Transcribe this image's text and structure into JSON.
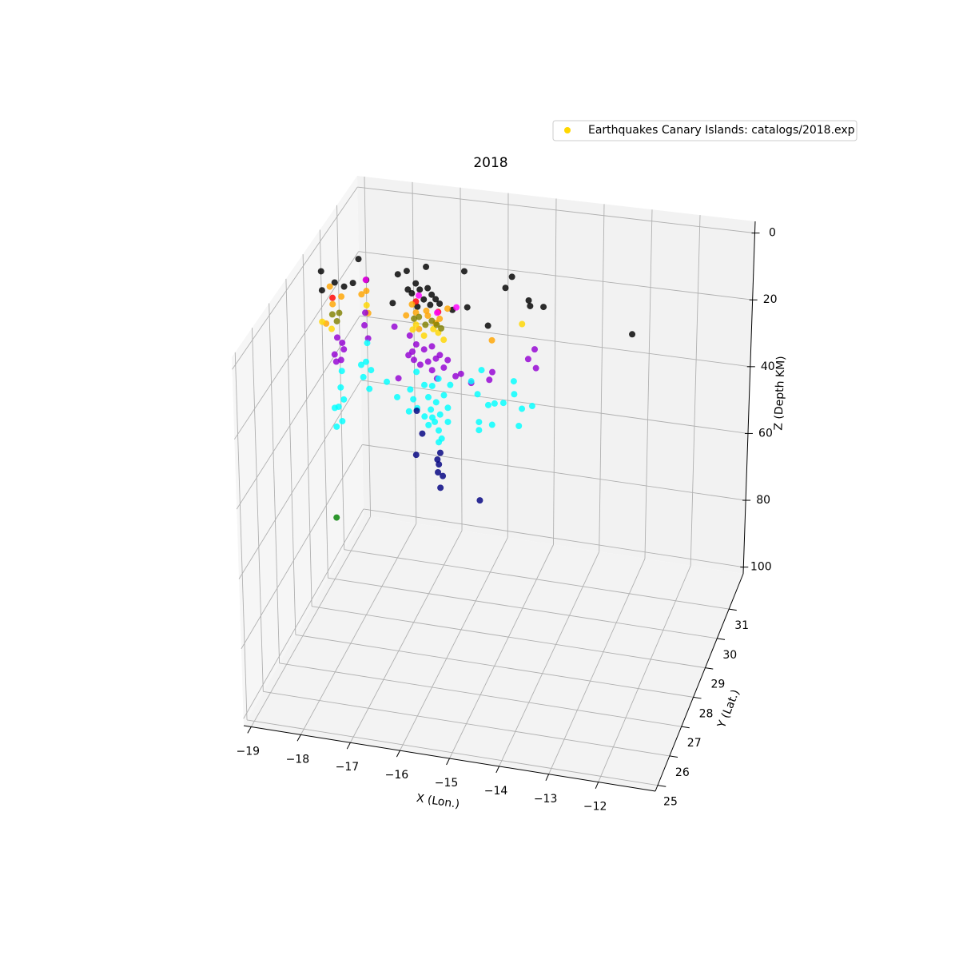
{
  "chart_data": {
    "type": "scatter3d",
    "title": "2018",
    "xlabel": "X (Lon.)",
    "ylabel": "Y (Lat.)",
    "zlabel": "Z (Depth KM)",
    "xlim": [
      -19.15,
      -10.85
    ],
    "ylim": [
      24.8,
      32.2
    ],
    "zlim": [
      102,
      -3.5
    ],
    "xticks": [
      {
        "value": -19,
        "label": "−19"
      },
      {
        "value": -18,
        "label": "−18"
      },
      {
        "value": -17,
        "label": "−17"
      },
      {
        "value": -16,
        "label": "−16"
      },
      {
        "value": -15,
        "label": "−15"
      },
      {
        "value": -14,
        "label": "−14"
      },
      {
        "value": -13,
        "label": "−13"
      },
      {
        "value": -12,
        "label": "−12"
      }
    ],
    "yticks": [
      25,
      26,
      27,
      28,
      29,
      30,
      31
    ],
    "zticks": [
      0,
      20,
      40,
      60,
      80,
      100
    ],
    "grid": true,
    "legend": "upper right",
    "series": [
      {
        "name": "Earthquakes Canary Islands: catalogs/2018.exp",
        "color": "gold",
        "x": [
          -18.21,
          -17.24,
          -16.85,
          -16.08,
          -15.12,
          -15.25,
          -14.78,
          -14.48,
          -14.75,
          -12.68,
          -15.6,
          -16.02,
          -17.42,
          -17.06,
          -17.53,
          -18.97,
          -18.7,
          -18.96,
          -18.51,
          -18.33,
          -18.06,
          -17.22,
          -16.98,
          -16.82,
          -16.74,
          -16.66,
          -16.9,
          -16.58,
          -16.77,
          -17.14,
          -16.32,
          -17.03,
          -18.75,
          -17.06,
          -16.61,
          -18.07,
          -16.24,
          -16.63,
          -17.0,
          -18.8,
          -18.57,
          -18.75,
          -18.06,
          -18.16,
          -18.03,
          -18.89,
          -17.26,
          -17.06,
          -16.82,
          -16.58,
          -17.0,
          -16.42,
          -15.52,
          -16.85,
          -17.14,
          -16.66,
          -18.97,
          -18.78,
          -18.06,
          -17.13,
          -16.9,
          -16.61,
          -16.5,
          -16.71,
          -14.91,
          -17.06,
          -18.76,
          -18.62,
          -18.67,
          -17.1,
          -16.87,
          -16.64,
          -16.74,
          -17.0,
          -16.55,
          -18.09,
          -18.11,
          -17.5,
          -18.04,
          -18.67,
          -18.57,
          -18.73,
          -18.6,
          -18.54,
          -18.7,
          -17.19,
          -17.06,
          -17.14,
          -16.9,
          -16.74,
          -16.66,
          -16.82,
          -16.58,
          -16.5,
          -16.98,
          -16.74,
          -17.11,
          -17.22,
          -16.64,
          -16.42,
          -16.15,
          -16.26,
          -15.94,
          -15.51,
          -15.57,
          -14.65,
          -14.78,
          -14.62,
          -17.43,
          -18.06,
          -18.09,
          -17.99,
          -18.15,
          -18.03,
          -18.19,
          -18.59,
          -18.62,
          -18.56,
          -18.67,
          -18.72,
          -18.6,
          -18.75,
          -17.67,
          -17.46,
          -17.19,
          -17.13,
          -17.22,
          -17.05,
          -16.9,
          -16.82,
          -16.74,
          -16.66,
          -16.77,
          -16.58,
          -16.69,
          -16.82,
          -16.61,
          -16.55,
          -16.74,
          -16.9,
          -16.5,
          -16.42,
          -16.61,
          -17.06,
          -16.37,
          -15.94,
          -15.73,
          -15.81,
          -15.59,
          -15.46,
          -15.28,
          -15.07,
          -15.06,
          -14.9,
          -14.69,
          -14.96,
          -15.51,
          -15.78,
          -15.78,
          -16.42,
          -16.61,
          -17.06,
          -16.95,
          -16.58,
          -16.61,
          -16.63,
          -16.58,
          -16.53,
          -17.08,
          -15.76,
          -16.64,
          -18.76
        ],
        "y": [
          29.5,
          29.5,
          29.5,
          29.5,
          29.5,
          29.5,
          29.5,
          29.5,
          29.5,
          29.5,
          29.5,
          29.5,
          29.5,
          29.5,
          29.5,
          29.5,
          29.5,
          29.5,
          29.5,
          29.5,
          29.5,
          29.5,
          29.5,
          29.5,
          29.5,
          29.5,
          29.5,
          29.5,
          29.5,
          29.5,
          29.5,
          29.5,
          29.5,
          29.5,
          29.5,
          29.5,
          29.5,
          29.5,
          29.5,
          29.5,
          29.5,
          29.5,
          29.5,
          29.5,
          29.5,
          29.5,
          29.5,
          29.5,
          29.5,
          29.5,
          29.5,
          29.5,
          29.5,
          29.5,
          29.5,
          29.5,
          29.5,
          29.5,
          29.5,
          29.5,
          29.5,
          29.5,
          29.5,
          29.5,
          29.5,
          29.5,
          29.5,
          29.5,
          29.5,
          29.5,
          29.5,
          29.5,
          29.5,
          29.5,
          29.5,
          29.5,
          29.5,
          29.5,
          29.5,
          29.5,
          29.5,
          29.5,
          29.5,
          29.5,
          29.5,
          29.5,
          29.5,
          29.5,
          29.5,
          29.5,
          29.5,
          29.5,
          29.5,
          29.5,
          29.5,
          29.5,
          29.5,
          29.5,
          29.5,
          29.5,
          29.5,
          29.5,
          29.5,
          29.5,
          29.5,
          29.5,
          29.5,
          29.5,
          29.5,
          29.5,
          29.5,
          29.5,
          29.5,
          29.5,
          29.5,
          29.5,
          29.5,
          29.5,
          29.5,
          29.5,
          29.5,
          29.5,
          29.5,
          29.5,
          29.5,
          29.5,
          29.5,
          29.5,
          29.5,
          29.5,
          29.5,
          29.5,
          29.5,
          29.5,
          29.5,
          29.5,
          29.5,
          29.5,
          29.5,
          29.5,
          29.5,
          29.5,
          29.5,
          29.5,
          29.5,
          29.5,
          29.5,
          29.5,
          29.5,
          29.5,
          29.5,
          29.5,
          29.5,
          29.5,
          29.5,
          29.5,
          29.5,
          29.5,
          29.5,
          29.5,
          29.5,
          29.5,
          29.5,
          29.5,
          29.5,
          29.5,
          29.5,
          29.5,
          29.5,
          29.5,
          29.5,
          29.5
        ],
        "z": [
          0,
          1.9,
          0,
          0,
          0,
          3.5,
          6.4,
          7.8,
          8,
          12.7,
          15.3,
          10.6,
          3.2,
          5.3,
          12,
          5,
          7.9,
          10.7,
          8.8,
          7.4,
          6,
          7.4,
          7,
          6.3,
          8.1,
          9.3,
          9.8,
          10.5,
          11.2,
          8.4,
          11.9,
          12.2,
          12.6,
          10.7,
          13,
          6,
          11,
          13.3,
          8.8,
          9.3,
          11.9,
          14.5,
          9.3,
          10.5,
          15.9,
          20.6,
          15.2,
          14,
          14.5,
          15,
          18.8,
          11.7,
          19.5,
          13.1,
          11.7,
          16.4,
          20.2,
          22,
          13.6,
          19.2,
          20.6,
          19.2,
          21.1,
          18.3,
          13.6,
          17.6,
          17.6,
          16.9,
          19.5,
          15.9,
          17.3,
          16.9,
          15.9,
          15.2,
          17.8,
          15.9,
          19.7,
          19,
          23.5,
          24.4,
          25.8,
          29.6,
          31,
          27.7,
          31.7,
          21.1,
          23.5,
          25.8,
          24.7,
          23.5,
          27,
          28.2,
          25.8,
          29.4,
          29.4,
          30.6,
          28.2,
          27,
          32.9,
          27,
          30.6,
          31.5,
          32.9,
          28.9,
          31.3,
          20.6,
          23.7,
          26.1,
          34.3,
          24.9,
          30.6,
          32.9,
          35.3,
          38.6,
          31.7,
          34.3,
          39.3,
          42.8,
          45.2,
          51.3,
          49.4,
          45.7,
          35.8,
          40,
          37.2,
          40,
          43.8,
          42.5,
          35.3,
          38.8,
          35.3,
          40,
          42.4,
          43.5,
          45.9,
          47.1,
          48.3,
          50.6,
          44.7,
          44.7,
          37.6,
          41.2,
          32.9,
          31.7,
          34.3,
          32.4,
          28.7,
          36,
          38.8,
          38.1,
          37.6,
          30.8,
          34.6,
          38.6,
          37.4,
          43.8,
          44.5,
          44.2,
          46.6,
          45.4,
          51.8,
          43.3,
          49.9,
          54.9,
          58.4,
          60.8,
          65.3,
          61.7,
          56.5,
          67.4,
          57,
          78.7
        ],
        "colors": [
          "black",
          "black",
          "black",
          "black",
          "black",
          "black",
          "black",
          "black",
          "black",
          "black",
          "black",
          "black",
          "black",
          "black",
          "black",
          "black",
          "black",
          "black",
          "black",
          "black",
          "black",
          "black",
          "black",
          "black",
          "black",
          "black",
          "black",
          "black",
          "black",
          "black",
          "black",
          "black",
          "red",
          "red",
          "red",
          "magenta",
          "magenta",
          "magenta",
          "magenta",
          "orange",
          "orange",
          "orange",
          "orange",
          "orange",
          "orange",
          "orange",
          "orange",
          "orange",
          "orange",
          "orange",
          "orange",
          "orange",
          "orange",
          "orange",
          "orange",
          "orange",
          "gold",
          "gold",
          "gold",
          "gold",
          "gold",
          "gold",
          "gold",
          "gold",
          "gold",
          "gold",
          "olive",
          "olive",
          "olive",
          "olive",
          "olive",
          "olive",
          "olive",
          "olive",
          "olive",
          "darkviolet",
          "darkviolet",
          "darkviolet",
          "darkviolet",
          "darkviolet",
          "darkviolet",
          "darkviolet",
          "darkviolet",
          "darkviolet",
          "darkviolet",
          "darkviolet",
          "darkviolet",
          "darkviolet",
          "darkviolet",
          "darkviolet",
          "darkviolet",
          "darkviolet",
          "darkviolet",
          "darkviolet",
          "darkviolet",
          "darkviolet",
          "darkviolet",
          "darkviolet",
          "darkviolet",
          "darkviolet",
          "darkviolet",
          "darkviolet",
          "darkviolet",
          "darkviolet",
          "darkviolet",
          "darkviolet",
          "darkviolet",
          "darkviolet",
          "darkviolet",
          "cyan",
          "cyan",
          "cyan",
          "cyan",
          "cyan",
          "cyan",
          "cyan",
          "cyan",
          "cyan",
          "cyan",
          "cyan",
          "cyan",
          "cyan",
          "cyan",
          "cyan",
          "cyan",
          "cyan",
          "cyan",
          "cyan",
          "cyan",
          "cyan",
          "cyan",
          "cyan",
          "cyan",
          "cyan",
          "cyan",
          "cyan",
          "cyan",
          "cyan",
          "cyan",
          "cyan",
          "cyan",
          "cyan",
          "cyan",
          "cyan",
          "cyan",
          "cyan",
          "cyan",
          "cyan",
          "cyan",
          "cyan",
          "cyan",
          "cyan",
          "cyan",
          "cyan",
          "cyan",
          "cyan",
          "cyan",
          "cyan",
          "cyan",
          "cyan",
          "cyan",
          "navy",
          "navy",
          "navy",
          "navy",
          "navy",
          "navy",
          "navy",
          "navy",
          "navy",
          "navy",
          "green"
        ]
      }
    ]
  }
}
